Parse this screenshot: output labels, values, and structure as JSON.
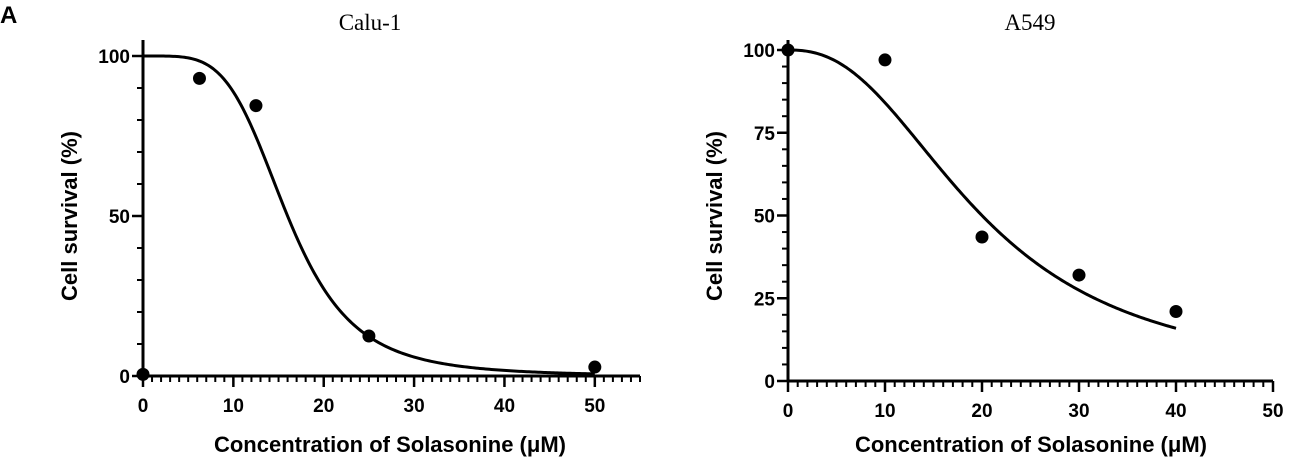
{
  "panel_label": "A",
  "chart_data": [
    {
      "type": "scatter",
      "title": "Calu-1",
      "xlabel": "Concentration of Solasonine (μM)",
      "ylabel": "Cell survival (%)",
      "xlim": [
        0,
        55
      ],
      "ylim": [
        0,
        100
      ],
      "xticks": [
        0,
        10,
        20,
        30,
        40,
        50
      ],
      "yticks": [
        0,
        50,
        100
      ],
      "x_minor_step": 1,
      "y_minor_step": 10,
      "points": [
        {
          "x": 0,
          "y": 0.5
        },
        {
          "x": 6.25,
          "y": 93
        },
        {
          "x": 12.5,
          "y": 84.5
        },
        {
          "x": 25,
          "y": 12.5
        },
        {
          "x": 50,
          "y": 2.8
        }
      ],
      "fit": {
        "model": "four-parameter logistic",
        "top": 100,
        "bottom": 0,
        "ic50": 16,
        "hill": 4.4,
        "x_range": [
          0,
          50
        ]
      }
    },
    {
      "type": "scatter",
      "title": "A549",
      "xlabel": "Concentration of Solasonine (μM)",
      "ylabel": "Cell survival (%)",
      "xlim": [
        0,
        50
      ],
      "ylim": [
        0,
        100
      ],
      "xticks": [
        0,
        10,
        20,
        30,
        40,
        50
      ],
      "yticks": [
        0,
        25,
        50,
        75,
        100
      ],
      "x_minor_step": 1,
      "y_minor_step": 5,
      "points": [
        {
          "x": 0,
          "y": 100
        },
        {
          "x": 10,
          "y": 97
        },
        {
          "x": 20,
          "y": 43.5
        },
        {
          "x": 30,
          "y": 32
        },
        {
          "x": 40,
          "y": 21
        }
      ],
      "fit": {
        "model": "four-parameter logistic",
        "top": 100,
        "bottom": 0,
        "ic50": 20,
        "hill": 2.4,
        "x_range": [
          0,
          40
        ]
      }
    }
  ]
}
